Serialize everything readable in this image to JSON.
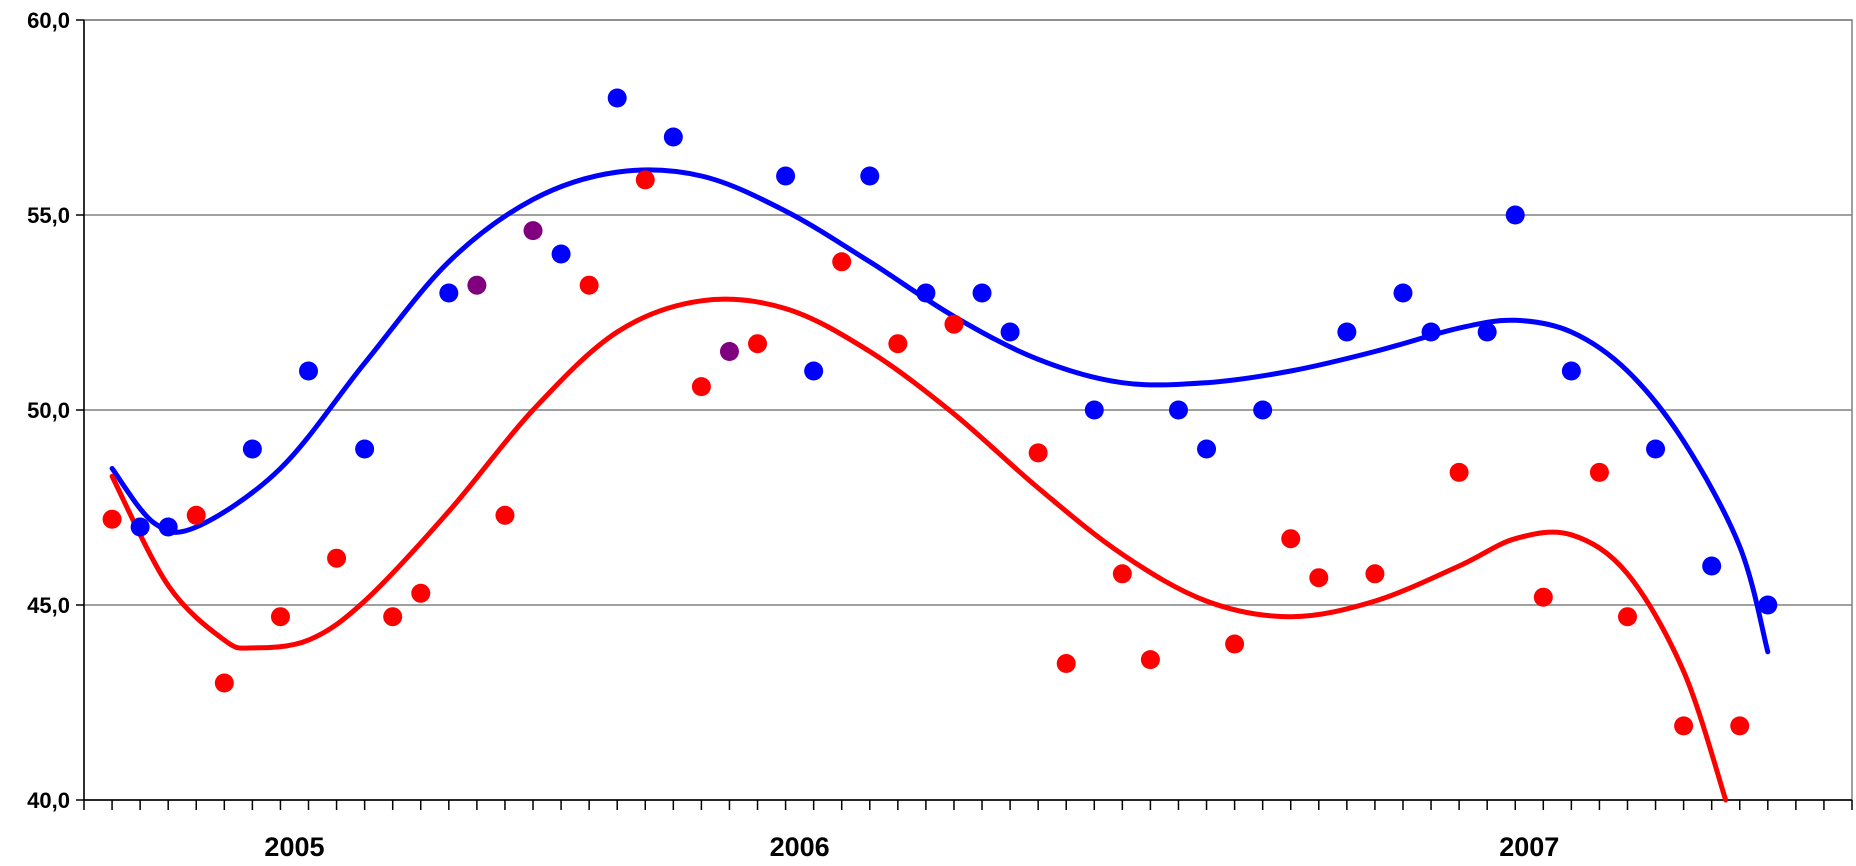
{
  "chart_data": {
    "type": "scatter",
    "title": "",
    "xlabel": "",
    "ylabel": "",
    "ylim": [
      40,
      60
    ],
    "y_ticks": [
      "60,0",
      "55,0",
      "50,0",
      "45,0",
      "40,0"
    ],
    "y_tick_values": [
      60,
      55,
      50,
      45,
      40
    ],
    "x_category_labels": [
      {
        "label": "2005",
        "month_index": 6.5
      },
      {
        "label": "2006",
        "month_index": 24.5
      },
      {
        "label": "2007",
        "month_index": 50.5
      }
    ],
    "x_months_total": 63,
    "grid": true,
    "legend": "none",
    "colors": {
      "blue": "#0000ff",
      "red": "#ff0000",
      "purple": "#800080",
      "axis": "#000000",
      "gridline": "#808080"
    },
    "series": [
      {
        "color_key": "blue",
        "points": [
          {
            "x": 1,
            "y": 47.0
          },
          {
            "x": 2,
            "y": 47.0
          },
          {
            "x": 5,
            "y": 49.0
          },
          {
            "x": 7,
            "y": 51.0
          },
          {
            "x": 9,
            "y": 49.0
          },
          {
            "x": 12,
            "y": 53.0
          },
          {
            "x": 16,
            "y": 54.0
          },
          {
            "x": 18,
            "y": 58.0
          },
          {
            "x": 20,
            "y": 57.0
          },
          {
            "x": 24,
            "y": 56.0
          },
          {
            "x": 25,
            "y": 51.0
          },
          {
            "x": 27,
            "y": 56.0
          },
          {
            "x": 29,
            "y": 53.0
          },
          {
            "x": 31,
            "y": 53.0
          },
          {
            "x": 32,
            "y": 52.0
          },
          {
            "x": 35,
            "y": 50.0
          },
          {
            "x": 38,
            "y": 50.0
          },
          {
            "x": 39,
            "y": 49.0
          },
          {
            "x": 41,
            "y": 50.0
          },
          {
            "x": 44,
            "y": 52.0
          },
          {
            "x": 46,
            "y": 53.0
          },
          {
            "x": 47,
            "y": 52.0
          },
          {
            "x": 49,
            "y": 52.0
          },
          {
            "x": 50,
            "y": 55.0
          },
          {
            "x": 52,
            "y": 51.0
          },
          {
            "x": 55,
            "y": 49.0
          },
          {
            "x": 57,
            "y": 46.0
          },
          {
            "x": 59,
            "y": 45.0
          }
        ],
        "trend": [
          {
            "x": 0,
            "y": 48.5
          },
          {
            "x": 1.5,
            "y": 47.1
          },
          {
            "x": 3,
            "y": 47.0
          },
          {
            "x": 6,
            "y": 48.5
          },
          {
            "x": 9,
            "y": 51.2
          },
          {
            "x": 12,
            "y": 53.8
          },
          {
            "x": 15,
            "y": 55.4
          },
          {
            "x": 18,
            "y": 56.1
          },
          {
            "x": 21,
            "y": 56.0
          },
          {
            "x": 24,
            "y": 55.1
          },
          {
            "x": 27,
            "y": 53.8
          },
          {
            "x": 30,
            "y": 52.4
          },
          {
            "x": 33,
            "y": 51.3
          },
          {
            "x": 36,
            "y": 50.7
          },
          {
            "x": 39,
            "y": 50.7
          },
          {
            "x": 42,
            "y": 51.0
          },
          {
            "x": 45,
            "y": 51.5
          },
          {
            "x": 48,
            "y": 52.1
          },
          {
            "x": 50,
            "y": 52.3
          },
          {
            "x": 52,
            "y": 52.0
          },
          {
            "x": 54,
            "y": 51.0
          },
          {
            "x": 56,
            "y": 49.2
          },
          {
            "x": 58,
            "y": 46.5
          },
          {
            "x": 59,
            "y": 43.8
          }
        ]
      },
      {
        "color_key": "red",
        "points": [
          {
            "x": 0,
            "y": 47.2
          },
          {
            "x": 3,
            "y": 47.3
          },
          {
            "x": 4,
            "y": 43.0
          },
          {
            "x": 6,
            "y": 44.7
          },
          {
            "x": 8,
            "y": 46.2
          },
          {
            "x": 10,
            "y": 44.7
          },
          {
            "x": 11,
            "y": 45.3
          },
          {
            "x": 14,
            "y": 47.3
          },
          {
            "x": 17,
            "y": 53.2
          },
          {
            "x": 19,
            "y": 55.9
          },
          {
            "x": 21,
            "y": 50.6
          },
          {
            "x": 23,
            "y": 51.7
          },
          {
            "x": 26,
            "y": 53.8
          },
          {
            "x": 28,
            "y": 51.7
          },
          {
            "x": 30,
            "y": 52.2
          },
          {
            "x": 33,
            "y": 48.9
          },
          {
            "x": 34,
            "y": 43.5
          },
          {
            "x": 36,
            "y": 45.8
          },
          {
            "x": 37,
            "y": 43.6
          },
          {
            "x": 40,
            "y": 44.0
          },
          {
            "x": 42,
            "y": 46.7
          },
          {
            "x": 43,
            "y": 45.7
          },
          {
            "x": 45,
            "y": 45.8
          },
          {
            "x": 48,
            "y": 48.4
          },
          {
            "x": 51,
            "y": 45.2
          },
          {
            "x": 53,
            "y": 48.4
          },
          {
            "x": 54,
            "y": 44.7
          },
          {
            "x": 56,
            "y": 41.9
          },
          {
            "x": 58,
            "y": 41.9
          }
        ],
        "trend": [
          {
            "x": 0,
            "y": 48.3
          },
          {
            "x": 2,
            "y": 45.5
          },
          {
            "x": 4,
            "y": 44.1
          },
          {
            "x": 5,
            "y": 43.9
          },
          {
            "x": 7,
            "y": 44.1
          },
          {
            "x": 9,
            "y": 45.1
          },
          {
            "x": 12,
            "y": 47.4
          },
          {
            "x": 15,
            "y": 50.0
          },
          {
            "x": 18,
            "y": 52.0
          },
          {
            "x": 21,
            "y": 52.8
          },
          {
            "x": 24,
            "y": 52.6
          },
          {
            "x": 27,
            "y": 51.5
          },
          {
            "x": 30,
            "y": 49.9
          },
          {
            "x": 33,
            "y": 48.0
          },
          {
            "x": 36,
            "y": 46.3
          },
          {
            "x": 39,
            "y": 45.1
          },
          {
            "x": 42,
            "y": 44.7
          },
          {
            "x": 45,
            "y": 45.1
          },
          {
            "x": 48,
            "y": 46.0
          },
          {
            "x": 50,
            "y": 46.7
          },
          {
            "x": 52,
            "y": 46.8
          },
          {
            "x": 54,
            "y": 45.8
          },
          {
            "x": 56,
            "y": 43.3
          },
          {
            "x": 57.5,
            "y": 40.0
          }
        ]
      },
      {
        "color_key": "purple",
        "points": [
          {
            "x": 13,
            "y": 53.2
          },
          {
            "x": 15,
            "y": 54.6
          },
          {
            "x": 22,
            "y": 51.5
          }
        ]
      }
    ]
  }
}
